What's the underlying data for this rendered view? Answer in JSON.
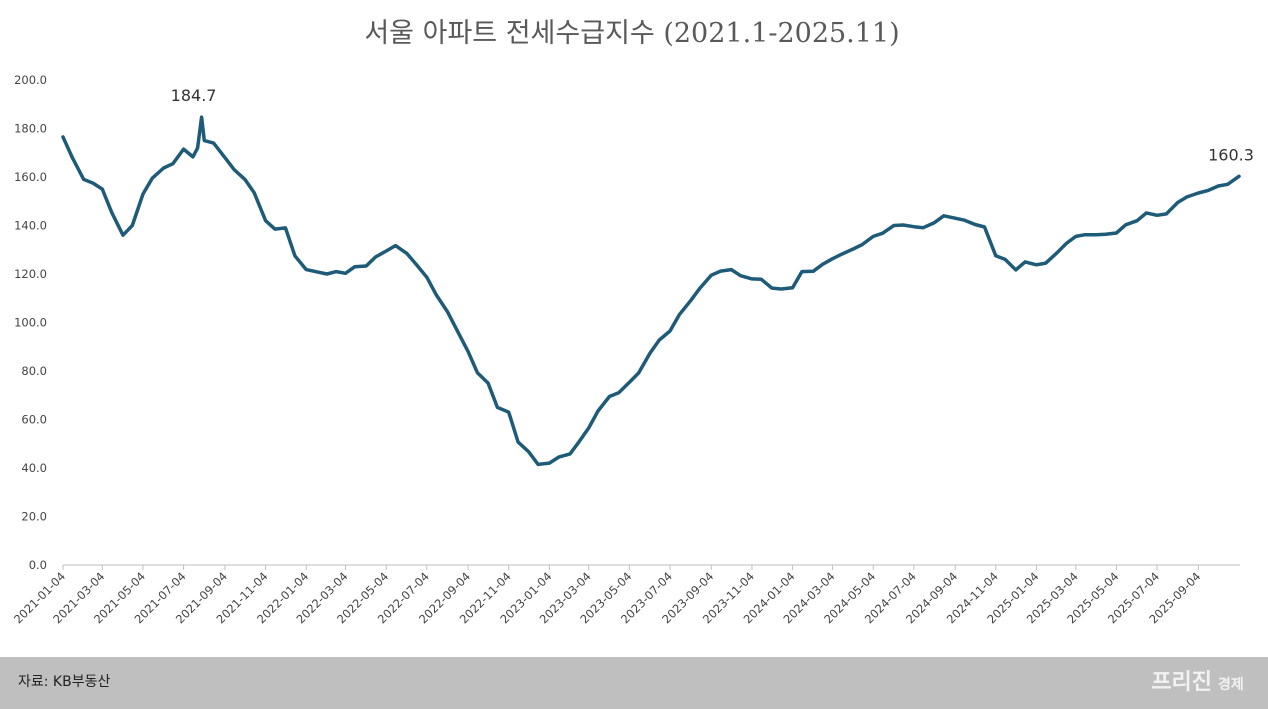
{
  "chart_data": {
    "type": "line",
    "title": "서울 아파트 전세수급지수 (2021.1-2025.11)",
    "color": "#1e5b78",
    "x": [
      "2021-01-04",
      "2021-01-18",
      "2021-02-04",
      "2021-02-18",
      "2021-03-04",
      "2021-03-18",
      "2021-04-04",
      "2021-04-18",
      "2021-05-04",
      "2021-05-18",
      "2021-06-04",
      "2021-06-18",
      "2021-07-04",
      "2021-07-18",
      "2021-07-25",
      "2021-07-31",
      "2021-08-04",
      "2021-08-18",
      "2021-09-04",
      "2021-09-18",
      "2021-10-04",
      "2021-10-18",
      "2021-11-04",
      "2021-11-18",
      "2021-12-04",
      "2021-12-18",
      "2022-01-04",
      "2022-01-18",
      "2022-02-04",
      "2022-02-18",
      "2022-03-04",
      "2022-03-18",
      "2022-04-04",
      "2022-04-18",
      "2022-05-04",
      "2022-05-18",
      "2022-06-04",
      "2022-06-18",
      "2022-07-04",
      "2022-07-18",
      "2022-08-04",
      "2022-08-18",
      "2022-09-04",
      "2022-09-18",
      "2022-10-04",
      "2022-10-18",
      "2022-11-04",
      "2022-11-18",
      "2022-12-04",
      "2022-12-18",
      "2023-01-04",
      "2023-01-18",
      "2023-02-04",
      "2023-02-18",
      "2023-03-04",
      "2023-03-18",
      "2023-04-04",
      "2023-04-18",
      "2023-05-04",
      "2023-05-18",
      "2023-06-04",
      "2023-06-18",
      "2023-07-04",
      "2023-07-18",
      "2023-08-04",
      "2023-08-18",
      "2023-09-04",
      "2023-09-18",
      "2023-10-04",
      "2023-10-18",
      "2023-11-04",
      "2023-11-18",
      "2023-12-04",
      "2023-12-18",
      "2024-01-04",
      "2024-01-18",
      "2024-02-04",
      "2024-02-18",
      "2024-03-04",
      "2024-03-18",
      "2024-04-04",
      "2024-04-18",
      "2024-05-04",
      "2024-05-18",
      "2024-06-04",
      "2024-06-18",
      "2024-07-04",
      "2024-07-18",
      "2024-08-04",
      "2024-08-18",
      "2024-09-04",
      "2024-09-18",
      "2024-10-04",
      "2024-10-18",
      "2024-11-04",
      "2024-11-18",
      "2024-12-04",
      "2024-12-18",
      "2025-01-04",
      "2025-01-18",
      "2025-02-04",
      "2025-02-18",
      "2025-03-04",
      "2025-03-18",
      "2025-04-04",
      "2025-04-18",
      "2025-05-04",
      "2025-05-18",
      "2025-06-04",
      "2025-06-18",
      "2025-07-04",
      "2025-07-18",
      "2025-08-04",
      "2025-08-18",
      "2025-09-04",
      "2025-09-18",
      "2025-10-04",
      "2025-10-18",
      "2025-11-04"
    ],
    "values": [
      176.5,
      168,
      159,
      157.5,
      155,
      145.5,
      136,
      140,
      153,
      159.5,
      163.7,
      165.5,
      171.5,
      168.3,
      172,
      184.7,
      175,
      174,
      168,
      163,
      159,
      153.5,
      142,
      138.5,
      139,
      127.5,
      121.8,
      121,
      120,
      121,
      120.3,
      123,
      123.3,
      127,
      129.5,
      131.7,
      128.5,
      124,
      118.7,
      111.5,
      104.5,
      97,
      88,
      79.3,
      75,
      65,
      63,
      50.7,
      46.7,
      41.5,
      42,
      44.5,
      45.8,
      51,
      56.5,
      63.5,
      69.5,
      71,
      75.3,
      79.2,
      87.4,
      92.8,
      96.5,
      103.2,
      109,
      114.2,
      119.5,
      121.2,
      121.8,
      119.3,
      118,
      117.8,
      114.2,
      113.8,
      114.3,
      121,
      121.1,
      124,
      126.3,
      128.2,
      130.3,
      132.2,
      135.5,
      136.8,
      140,
      140.2,
      139.5,
      139.1,
      141.2,
      144,
      143,
      142.2,
      140.4,
      139.4,
      127.5,
      126,
      121.7,
      125,
      123.8,
      124.5,
      128.8,
      132.6,
      135.5,
      136.2,
      136.2,
      136.4,
      136.9,
      140.3,
      142,
      145.2,
      144.2,
      144.8,
      149.5,
      151.8,
      153.4,
      154.4,
      156.3,
      157,
      160.3
    ],
    "labeled": [
      15,
      118
    ],
    "xlim": [
      "2021-01-04",
      "2025-11-04"
    ],
    "xticks": [
      "2021-01-04",
      "2021-03-04",
      "2021-05-04",
      "2021-07-04",
      "2021-09-04",
      "2021-11-04",
      "2022-01-04",
      "2022-03-04",
      "2022-05-04",
      "2022-07-04",
      "2022-09-04",
      "2022-11-04",
      "2023-01-04",
      "2023-03-04",
      "2023-05-04",
      "2023-07-04",
      "2023-09-04",
      "2023-11-04",
      "2024-01-04",
      "2024-03-04",
      "2024-05-04",
      "2024-07-04",
      "2024-09-04",
      "2024-11-04",
      "2025-01-04",
      "2025-03-04",
      "2025-05-04",
      "2025-07-04",
      "2025-09-04"
    ],
    "ylim": [
      0,
      200
    ],
    "yticks": [
      {
        "value": 0,
        "label": "0.0"
      },
      {
        "value": 20,
        "label": "20.0"
      },
      {
        "value": 40,
        "label": "40.0"
      },
      {
        "value": 60,
        "label": "60.0"
      },
      {
        "value": 80,
        "label": "80.0"
      },
      {
        "value": 100,
        "label": "100.0"
      },
      {
        "value": 120,
        "label": "120.0"
      },
      {
        "value": 140,
        "label": "140.0"
      },
      {
        "value": 160,
        "label": "160.0"
      },
      {
        "value": 180,
        "label": "180.0"
      },
      {
        "value": 200,
        "label": "200.0"
      }
    ]
  },
  "footer": {
    "source": "자료: KB부동산",
    "logo": "프리진",
    "logo_sub": "경제"
  }
}
